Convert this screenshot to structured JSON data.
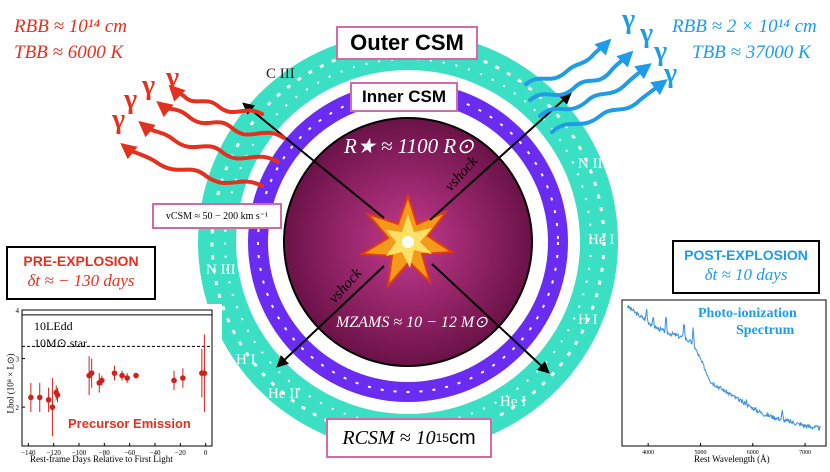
{
  "labels": {
    "outer_csm": "Outer CSM",
    "inner_csm": "Inner CSM",
    "r_star": "R★ ≈ 1100 R⊙",
    "v_csm": "vCSM ≈ 50 − 200 km s⁻¹",
    "v_shock": "vshock",
    "m_zams": "MZAMS ≈ 10 − 12 M⊙",
    "r_csm_prefix": "RCSM ≈ 10",
    "r_csm_exp": "15",
    "r_csm_unit": " cm"
  },
  "left_bb": {
    "r_line": "RBB ≈ 10¹⁴ cm",
    "t_line": "TBB ≈ 6000 K",
    "color": "#e4301f"
  },
  "right_bb": {
    "r_line": "RBB ≈ 2 × 10¹⁴ cm",
    "t_line": "TBB ≈ 37000 K",
    "color": "#1f9ce8"
  },
  "gamma": "γ",
  "spectral_lines": {
    "c3": "C III",
    "n3_right": "N III",
    "he1_right": "He I",
    "h1_right": "H I",
    "he1_bottom": "He I",
    "n3_left": "N III",
    "h1_left": "H I",
    "he2_left": "He II"
  },
  "pre_explosion": {
    "title": "PRE-EXPLOSION",
    "dt": "δt ≈ − 130 days"
  },
  "post_explosion": {
    "title": "POST-EXPLOSION",
    "dt": "δt ≈ 10 days"
  },
  "precursor_plot": {
    "line1": "10LEdd",
    "line2": "10M⊙ star",
    "ylabel": "Lbol (10⁸ × L⊙)",
    "xlabel": "Rest-frame Days Relative to First Light",
    "title": "Precursor Emission",
    "xticks": [
      "−140",
      "−120",
      "−100",
      "−80",
      "−60",
      "−40",
      "−20",
      "0"
    ],
    "yticks": [
      "2",
      "3",
      "4"
    ]
  },
  "spectrum_plot": {
    "title_line1": "Photo-ionization",
    "title_line2": "Spectrum",
    "xlabel": "Rest Wavelength (Å)",
    "xticks": [
      "4000",
      "5000",
      "6000",
      "7000"
    ]
  },
  "colors": {
    "outer_csm": "#3be0c4",
    "inner_csm": "#6a2cf0",
    "star_inner": "#c43a8e",
    "star_outer": "#6b1248",
    "box_border": "#d36aa8",
    "red": "#e4301f",
    "blue": "#1f9ce8"
  },
  "chart_data": [
    {
      "type": "scatter",
      "title": "Precursor Emission",
      "xlabel": "Rest-frame Days Relative to First Light",
      "ylabel": "Lbol (10⁸ × L⊙)",
      "xlim": [
        -145,
        5
      ],
      "ylim": [
        1.2,
        4.0
      ],
      "hlines": [
        {
          "label": "10LEdd",
          "y": 3.9
        },
        {
          "label": "10M⊙ star",
          "y": 3.25
        }
      ],
      "points": [
        {
          "x": -138,
          "y": 2.2,
          "err": 0.3
        },
        {
          "x": -131,
          "y": 2.2,
          "err": 0.3
        },
        {
          "x": -124,
          "y": 2.15,
          "err": 0.25
        },
        {
          "x": -121,
          "y": 2.0,
          "err": 0.6
        },
        {
          "x": -118,
          "y": 2.3,
          "err": 0.15
        },
        {
          "x": -117,
          "y": 2.25,
          "err": 0.15
        },
        {
          "x": -92,
          "y": 2.65,
          "err": 0.4
        },
        {
          "x": -90,
          "y": 2.7,
          "err": 0.3
        },
        {
          "x": -84,
          "y": 2.5,
          "err": 0.2
        },
        {
          "x": -82,
          "y": 2.55,
          "err": 0.1
        },
        {
          "x": -72,
          "y": 2.7,
          "err": 0.15
        },
        {
          "x": -66,
          "y": 2.65,
          "err": 0.1
        },
        {
          "x": -62,
          "y": 2.6,
          "err": 0.1
        },
        {
          "x": -55,
          "y": 2.65,
          "err": 0.05
        },
        {
          "x": -25,
          "y": 2.55,
          "err": 0.2
        },
        {
          "x": -18,
          "y": 2.6,
          "err": 0.2
        },
        {
          "x": -3,
          "y": 2.7,
          "err": 0.5
        },
        {
          "x": -1,
          "y": 2.7,
          "err": 0.8
        }
      ]
    },
    {
      "type": "line",
      "title": "Photo-ionization Spectrum",
      "xlabel": "Rest Wavelength (Å)",
      "xlim": [
        3500,
        7400
      ],
      "series": [
        {
          "x": [
            3600,
            3800,
            3970,
            4100,
            4340,
            4686,
            4861,
            5200,
            5800,
            6200,
            6563,
            7000,
            7300
          ],
          "y": [
            0.96,
            0.9,
            0.86,
            0.82,
            0.78,
            0.74,
            0.7,
            0.44,
            0.3,
            0.22,
            0.18,
            0.14,
            0.12
          ]
        }
      ]
    }
  ]
}
